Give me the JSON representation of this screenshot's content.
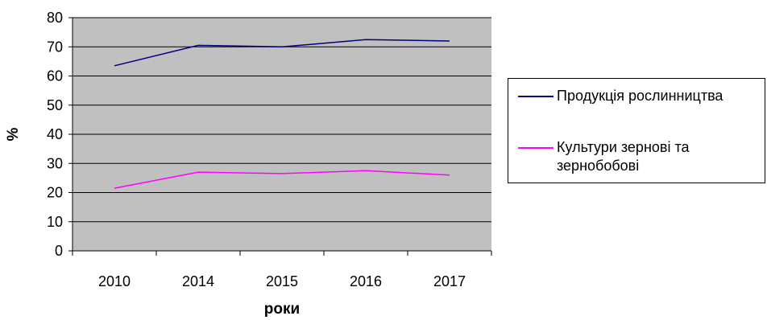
{
  "chart_data": {
    "type": "line",
    "categories": [
      "2010",
      "2014",
      "2015",
      "2016",
      "2017"
    ],
    "series": [
      {
        "name": "Продукція рослинництва",
        "values": [
          63.5,
          70.5,
          70,
          72.5,
          72
        ],
        "color": "#000080"
      },
      {
        "name": "Культури зернові та зернобобові",
        "values": [
          21.5,
          27,
          26.5,
          27.5,
          26
        ],
        "color": "#ff00ff"
      }
    ],
    "xlabel": "роки",
    "ylabel": "%",
    "ylim": [
      0,
      80
    ],
    "yticks": [
      "0",
      "10",
      "20",
      "30",
      "40",
      "50",
      "60",
      "70",
      "80"
    ],
    "grid": true,
    "plot_background": "#c0c0c0",
    "legend_position": "right"
  }
}
